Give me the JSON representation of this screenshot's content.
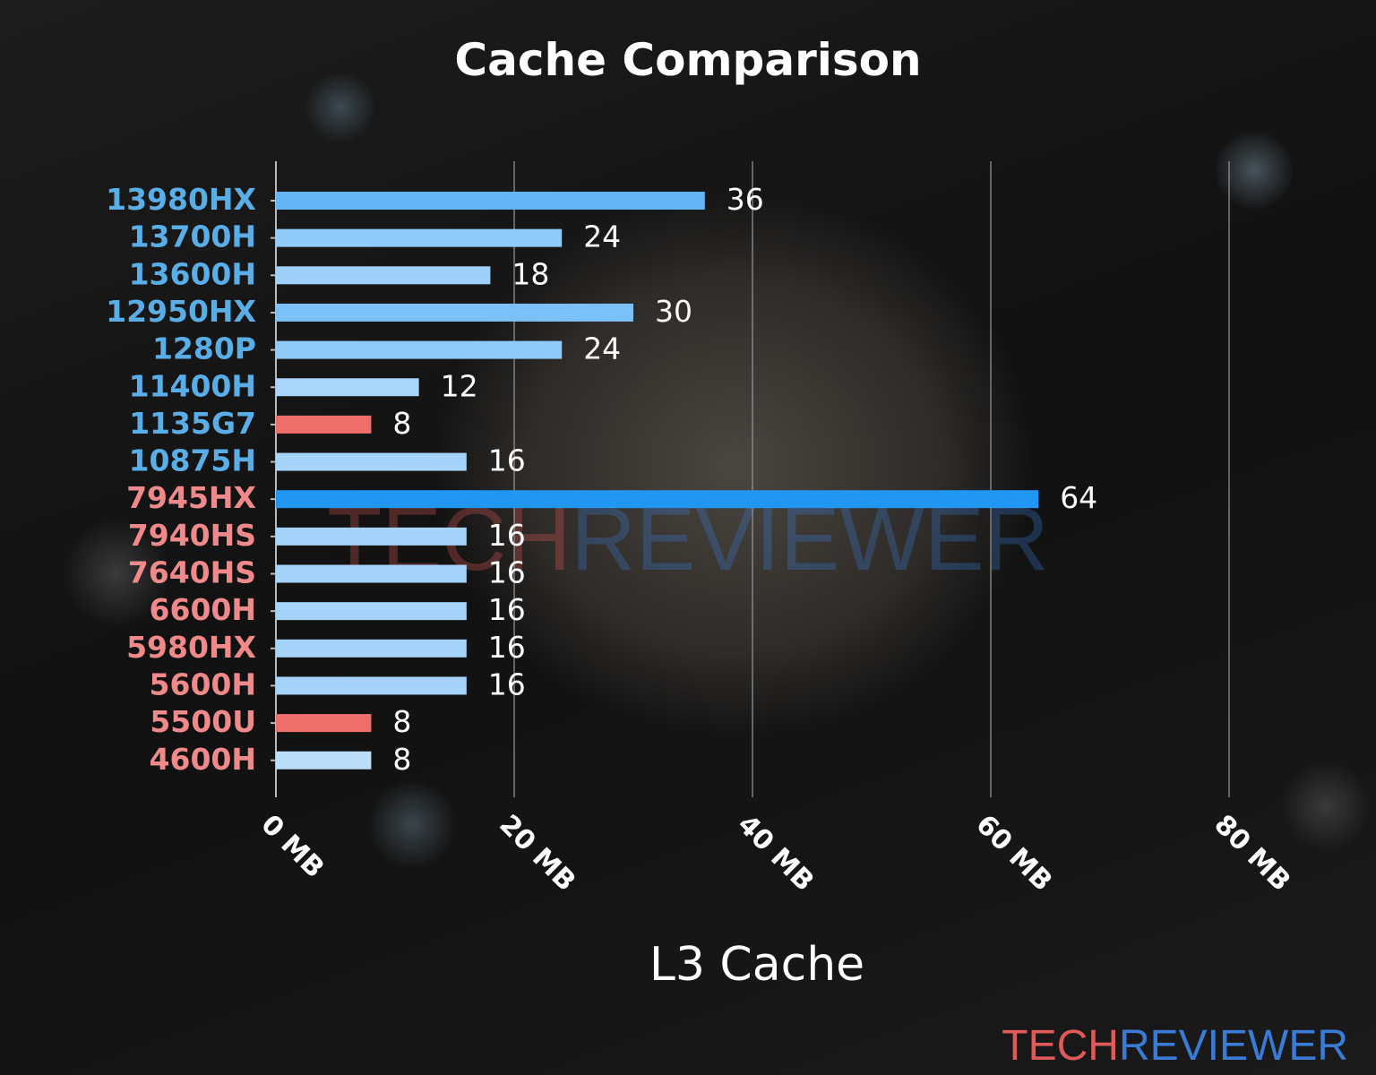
{
  "chart_data": {
    "type": "bar",
    "orientation": "horizontal",
    "title": "Cache Comparison",
    "xlabel": "L3 Cache",
    "ylabel": "",
    "xlim": [
      0,
      80
    ],
    "xticks": [
      0,
      20,
      40,
      60,
      80
    ],
    "xtick_labels": [
      "0 MB",
      "20 MB",
      "40 MB",
      "60 MB",
      "80 MB"
    ],
    "grid": "vertical",
    "categories": [
      "13980HX",
      "13700H",
      "13600H",
      "12950HX",
      "1280P",
      "11400H",
      "1135G7",
      "10875H",
      "7945HX",
      "7940HS",
      "7640HS",
      "6600H",
      "5980HX",
      "5600H",
      "5500U",
      "4600H"
    ],
    "values": [
      36,
      24,
      18,
      30,
      24,
      12,
      8,
      16,
      64,
      16,
      16,
      16,
      16,
      16,
      8,
      8
    ],
    "bar_colors": [
      "#64b5f6",
      "#90caf9",
      "#9fd0fa",
      "#7cc0f8",
      "#90caf9",
      "#aad5fb",
      "#ef6f6c",
      "#a5d3fa",
      "#2196f3",
      "#a5d3fa",
      "#a5d3fa",
      "#a5d3fa",
      "#a5d3fa",
      "#a5d3fa",
      "#ef6f6c",
      "#bbdefb"
    ],
    "label_colors": [
      "#5aaee8",
      "#5aaee8",
      "#5aaee8",
      "#5aaee8",
      "#5aaee8",
      "#5aaee8",
      "#5aaee8",
      "#5aaee8",
      "#f08a8a",
      "#f08a8a",
      "#f08a8a",
      "#f08a8a",
      "#f08a8a",
      "#f08a8a",
      "#f08a8a",
      "#f08a8a"
    ]
  },
  "watermark": {
    "part1": "TECH",
    "part2": "REVIEWER",
    "color1": "#e05a5a",
    "color2": "#3a7bd5"
  }
}
